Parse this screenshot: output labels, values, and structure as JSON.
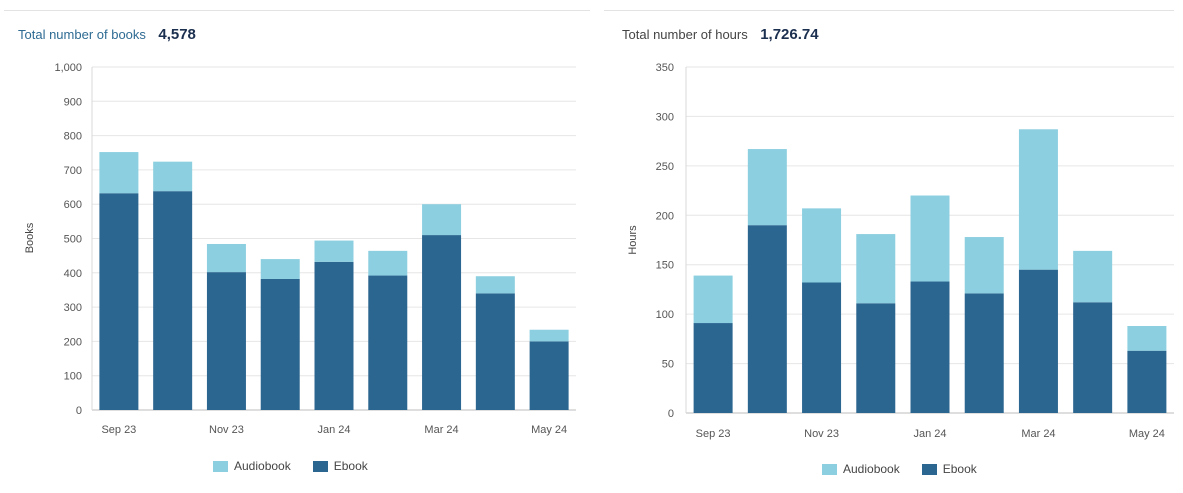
{
  "colors": {
    "audiobook": "#8ccfe0",
    "ebook": "#2b6690",
    "grid": "#e6e6e6"
  },
  "chart_data": [
    {
      "type": "bar",
      "stacked": true,
      "header_label": "Total number of books",
      "header_value": "4,578",
      "ylabel": "Books",
      "ylim": [
        0,
        1000
      ],
      "yticks": [
        0,
        100,
        200,
        300,
        400,
        500,
        600,
        700,
        800,
        900,
        1000
      ],
      "ytick_labels": [
        "0",
        "100",
        "200",
        "300",
        "400",
        "500",
        "600",
        "700",
        "800",
        "900",
        "1,000"
      ],
      "categories": [
        "Sep 23",
        "Oct 23",
        "Nov 23",
        "Dec 23",
        "Jan 24",
        "Feb 24",
        "Mar 24",
        "Apr 24",
        "May 24"
      ],
      "xtick_labels": [
        "Sep 23",
        "",
        "Nov 23",
        "",
        "Jan 24",
        "",
        "Mar 24",
        "",
        "May 24"
      ],
      "series": [
        {
          "name": "Ebook",
          "values": [
            632,
            638,
            402,
            382,
            432,
            392,
            510,
            340,
            200
          ]
        },
        {
          "name": "Audiobook",
          "values": [
            120,
            86,
            82,
            58,
            62,
            72,
            90,
            50,
            34
          ]
        }
      ],
      "legend": [
        "Audiobook",
        "Ebook"
      ],
      "grid": true,
      "legend_position": "bottom"
    },
    {
      "type": "bar",
      "stacked": true,
      "header_label": "Total number of hours",
      "header_value": "1,726.74",
      "ylabel": "Hours",
      "ylim": [
        0,
        350
      ],
      "yticks": [
        0,
        50,
        100,
        150,
        200,
        250,
        300,
        350
      ],
      "ytick_labels": [
        "0",
        "50",
        "100",
        "150",
        "200",
        "250",
        "300",
        "350"
      ],
      "categories": [
        "Sep 23",
        "Oct 23",
        "Nov 23",
        "Dec 23",
        "Jan 24",
        "Feb 24",
        "Mar 24",
        "Apr 24",
        "May 24"
      ],
      "xtick_labels": [
        "Sep 23",
        "",
        "Nov 23",
        "",
        "Jan 24",
        "",
        "Mar 24",
        "",
        "May 24"
      ],
      "series": [
        {
          "name": "Ebook",
          "values": [
            91,
            190,
            132,
            111,
            133,
            121,
            145,
            112,
            63
          ]
        },
        {
          "name": "Audiobook",
          "values": [
            48,
            77,
            75,
            70,
            87,
            57,
            142,
            52,
            25
          ]
        }
      ],
      "legend": [
        "Audiobook",
        "Ebook"
      ],
      "grid": true,
      "legend_position": "bottom"
    }
  ]
}
